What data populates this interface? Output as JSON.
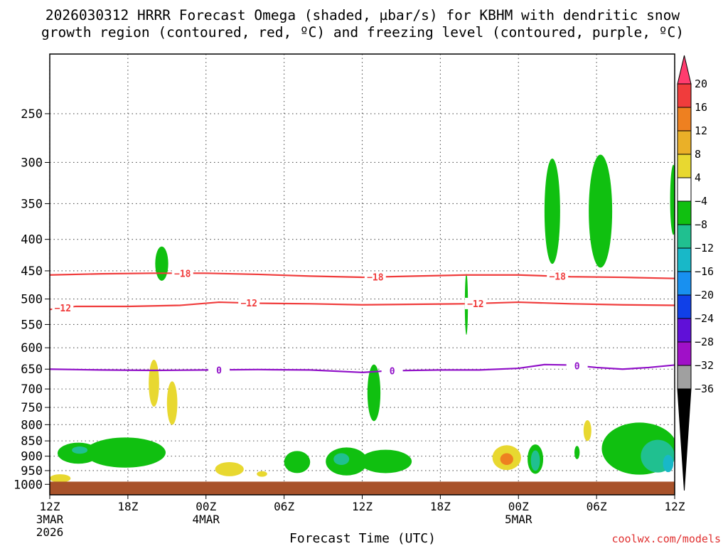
{
  "chart_data": {
    "type": "time-height",
    "title_line1": "2026030312 HRRR Forecast Omega (shaded, µbar/s) for KBHM with dendritic snow",
    "title_line2": "growth region (contoured, red, ºC) and freezing level (contoured, purple, ºC)",
    "xlabel": "Forecast Time (UTC)",
    "credit": "coolwx.com/models",
    "x_range_hours": [
      0,
      48
    ],
    "x_ticks": [
      {
        "hour": 0,
        "label": "12Z",
        "sub1": "3MAR",
        "sub2": "2026"
      },
      {
        "hour": 6,
        "label": "18Z",
        "sub1": "",
        "sub2": ""
      },
      {
        "hour": 12,
        "label": "00Z",
        "sub1": "4MAR",
        "sub2": ""
      },
      {
        "hour": 18,
        "label": "06Z",
        "sub1": "",
        "sub2": ""
      },
      {
        "hour": 24,
        "label": "12Z",
        "sub1": "",
        "sub2": ""
      },
      {
        "hour": 30,
        "label": "18Z",
        "sub1": "",
        "sub2": ""
      },
      {
        "hour": 36,
        "label": "00Z",
        "sub1": "5MAR",
        "sub2": ""
      },
      {
        "hour": 42,
        "label": "06Z",
        "sub1": "",
        "sub2": ""
      },
      {
        "hour": 48,
        "label": "12Z",
        "sub1": "",
        "sub2": ""
      }
    ],
    "y_ticks_hpa": [
      250,
      300,
      350,
      400,
      450,
      500,
      550,
      600,
      650,
      700,
      750,
      800,
      850,
      900,
      950,
      1000
    ],
    "y_range_hpa": [
      200,
      1040
    ],
    "ground_hpa": 990,
    "colorbar": {
      "labels": [
        "20",
        "16",
        "12",
        "8",
        "4",
        "−4",
        "−8",
        "−12",
        "−16",
        "−20",
        "−24",
        "−28",
        "−32",
        "−36"
      ],
      "colors": [
        "#ff3c6e",
        "#f03c3c",
        "#ee8020",
        "#eab028",
        "#e8d830",
        "#ffffff",
        "#10c010",
        "#20c090",
        "#18b8c8",
        "#1890f0",
        "#1040e8",
        "#6010d8",
        "#a010c8",
        "#a0a0a0",
        "#000000"
      ]
    },
    "contours": [
      {
        "name": "dgz-minus18",
        "label": "−18",
        "color": "#f03c3c",
        "points": [
          [
            0,
            457
          ],
          [
            4,
            455
          ],
          [
            8,
            454
          ],
          [
            12,
            454
          ],
          [
            16,
            456
          ],
          [
            20,
            459
          ],
          [
            24,
            461
          ],
          [
            28,
            459
          ],
          [
            32,
            457
          ],
          [
            36,
            457
          ],
          [
            40,
            460
          ],
          [
            44,
            461
          ],
          [
            48,
            463
          ]
        ],
        "label_hours": [
          10.2,
          25.0,
          39.0
        ]
      },
      {
        "name": "dgz-minus12",
        "label": "−12",
        "color": "#f03c3c",
        "points": [
          [
            0,
            520
          ],
          [
            2,
            514
          ],
          [
            6,
            514
          ],
          [
            10,
            512
          ],
          [
            13,
            506
          ],
          [
            16,
            508
          ],
          [
            20,
            509
          ],
          [
            24,
            511
          ],
          [
            28,
            510
          ],
          [
            32,
            509
          ],
          [
            36,
            506
          ],
          [
            40,
            509
          ],
          [
            44,
            511
          ],
          [
            48,
            512
          ]
        ],
        "label_hours": [
          1.0,
          15.3,
          32.7
        ]
      },
      {
        "name": "freezing-level",
        "label": "0",
        "color": "#9010c8",
        "points": [
          [
            0,
            650
          ],
          [
            4,
            652
          ],
          [
            8,
            653
          ],
          [
            12,
            652
          ],
          [
            16,
            651
          ],
          [
            20,
            652
          ],
          [
            24,
            658
          ],
          [
            26,
            654
          ],
          [
            30,
            652
          ],
          [
            33,
            652
          ],
          [
            36,
            648
          ],
          [
            38,
            639
          ],
          [
            40,
            640
          ],
          [
            42,
            646
          ],
          [
            44,
            650
          ],
          [
            46,
            646
          ],
          [
            48,
            640
          ]
        ],
        "label_hours": [
          13.0,
          26.3,
          40.5
        ]
      }
    ],
    "omega_regions": [
      {
        "hour": 2.2,
        "hpa": 890,
        "rh": 1.6,
        "rp": 35,
        "value": -6
      },
      {
        "hour": 5.8,
        "hpa": 888,
        "rh": 3.1,
        "rp": 50,
        "value": -6
      },
      {
        "hour": 2.3,
        "hpa": 880,
        "rh": 0.6,
        "rp": 12,
        "value": -10
      },
      {
        "hour": 8.6,
        "hpa": 438,
        "rh": 0.5,
        "rp": 28,
        "value": -6
      },
      {
        "hour": 8.0,
        "hpa": 685,
        "rh": 0.4,
        "rp": 60,
        "value": 6
      },
      {
        "hour": 9.4,
        "hpa": 738,
        "rh": 0.4,
        "rp": 60,
        "value": 6
      },
      {
        "hour": 0.8,
        "hpa": 978,
        "rh": 0.8,
        "rp": 15,
        "value": 6
      },
      {
        "hour": 13.8,
        "hpa": 945,
        "rh": 1.1,
        "rp": 25,
        "value": 6
      },
      {
        "hour": 16.3,
        "hpa": 962,
        "rh": 0.4,
        "rp": 10,
        "value": 6
      },
      {
        "hour": 19.0,
        "hpa": 920,
        "rh": 1.0,
        "rp": 38,
        "value": -6
      },
      {
        "hour": 22.8,
        "hpa": 918,
        "rh": 1.6,
        "rp": 48,
        "value": -6
      },
      {
        "hour": 25.8,
        "hpa": 918,
        "rh": 2.0,
        "rp": 40,
        "value": -6
      },
      {
        "hour": 22.4,
        "hpa": 910,
        "rh": 0.6,
        "rp": 20,
        "value": -10
      },
      {
        "hour": 24.9,
        "hpa": 710,
        "rh": 0.5,
        "rp": 75,
        "value": -6
      },
      {
        "hour": 32.0,
        "hpa": 510,
        "rh": 0.12,
        "rp": 58,
        "value": -6
      },
      {
        "hour": 35.1,
        "hpa": 905,
        "rh": 1.1,
        "rp": 42,
        "value": 6
      },
      {
        "hour": 35.1,
        "hpa": 910,
        "rh": 0.5,
        "rp": 20,
        "value": 12
      },
      {
        "hour": 37.3,
        "hpa": 910,
        "rh": 0.6,
        "rp": 50,
        "value": -6
      },
      {
        "hour": 37.3,
        "hpa": 915,
        "rh": 0.35,
        "rp": 35,
        "value": -10
      },
      {
        "hour": 38.6,
        "hpa": 360,
        "rh": 0.6,
        "rp": 70,
        "value": -6
      },
      {
        "hour": 42.3,
        "hpa": 360,
        "rh": 0.9,
        "rp": 75,
        "value": -6
      },
      {
        "hour": 41.3,
        "hpa": 818,
        "rh": 0.3,
        "rp": 32,
        "value": 6
      },
      {
        "hour": 40.5,
        "hpa": 888,
        "rh": 0.2,
        "rp": 22,
        "value": -6
      },
      {
        "hour": 45.3,
        "hpa": 875,
        "rh": 2.9,
        "rp": 85,
        "value": -6
      },
      {
        "hour": 46.7,
        "hpa": 900,
        "rh": 1.3,
        "rp": 55,
        "value": -10
      },
      {
        "hour": 47.5,
        "hpa": 925,
        "rh": 0.4,
        "rp": 30,
        "value": -14
      },
      {
        "hour": 47.9,
        "hpa": 345,
        "rh": 0.25,
        "rp": 45,
        "value": -6
      }
    ]
  }
}
